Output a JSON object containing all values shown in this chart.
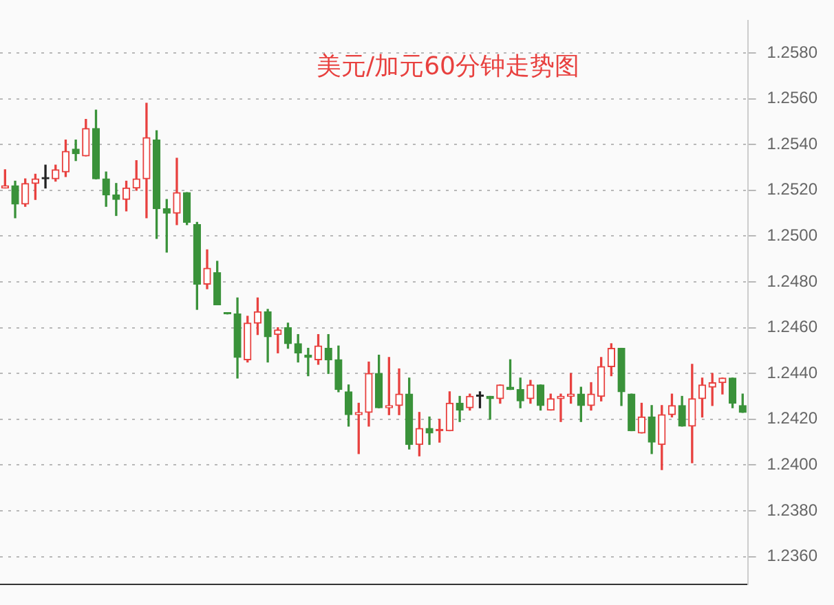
{
  "chart_data": {
    "type": "candlestick",
    "title": "美元/加元60分钟走势图",
    "categories": [
      null,
      null,
      null,
      null,
      null,
      null,
      null,
      null,
      null,
      null,
      null,
      null,
      null,
      null,
      null,
      null,
      null,
      null,
      null,
      null,
      null,
      null,
      null,
      null,
      null,
      null,
      null,
      null,
      null,
      null,
      null,
      null,
      null,
      null,
      null,
      null,
      null,
      null,
      null,
      null,
      null,
      null,
      null,
      null,
      null,
      null,
      null,
      null,
      null,
      null,
      null,
      null,
      null,
      null,
      null,
      null,
      null,
      null,
      null,
      null,
      null,
      null,
      null,
      null,
      null,
      null,
      null,
      null,
      null,
      null,
      null,
      null,
      null,
      null
    ],
    "ohlc": [
      [
        1.2521,
        1.2529,
        1.2521,
        1.2522
      ],
      [
        1.2522,
        1.2524,
        1.2508,
        1.2514
      ],
      [
        1.2514,
        1.2525,
        1.2513,
        1.2523
      ],
      [
        1.2523,
        1.2527,
        1.2516,
        1.2525
      ],
      [
        1.2525,
        1.2531,
        1.2521,
        1.2525
      ],
      [
        1.2525,
        1.2531,
        1.2524,
        1.2529
      ],
      [
        1.2528,
        1.2542,
        1.2526,
        1.2537
      ],
      [
        1.2538,
        1.2542,
        1.2533,
        1.2536
      ],
      [
        1.2535,
        1.2551,
        1.2535,
        1.2547
      ],
      [
        1.2547,
        1.2555,
        1.2525,
        1.2525
      ],
      [
        1.2525,
        1.2528,
        1.2513,
        1.2518
      ],
      [
        1.2518,
        1.2523,
        1.2509,
        1.2516
      ],
      [
        1.2516,
        1.2524,
        1.2511,
        1.2521
      ],
      [
        1.2521,
        1.2533,
        1.252,
        1.2525
      ],
      [
        1.2525,
        1.2558,
        1.2508,
        1.2543
      ],
      [
        1.2542,
        1.2546,
        1.2499,
        1.2512
      ],
      [
        1.2512,
        1.2516,
        1.2493,
        1.251
      ],
      [
        1.251,
        1.2534,
        1.2505,
        1.2519
      ],
      [
        1.2519,
        1.2519,
        1.2505,
        1.2506
      ],
      [
        1.2505,
        1.2506,
        1.2468,
        1.2479
      ],
      [
        1.2479,
        1.2494,
        1.2477,
        1.2486
      ],
      [
        1.2484,
        1.2489,
        1.247,
        1.247
      ],
      [
        1.2466,
        1.2466,
        1.2466,
        1.2466
      ],
      [
        1.2466,
        1.2473,
        1.2438,
        1.2447
      ],
      [
        1.2446,
        1.2465,
        1.2445,
        1.2462
      ],
      [
        1.2462,
        1.2473,
        1.2457,
        1.2467
      ],
      [
        1.2467,
        1.2468,
        1.2445,
        1.2456
      ],
      [
        1.2457,
        1.246,
        1.2449,
        1.2459
      ],
      [
        1.246,
        1.2462,
        1.2451,
        1.2453
      ],
      [
        1.2453,
        1.2457,
        1.2445,
        1.2449
      ],
      [
        1.2448,
        1.2451,
        1.2439,
        1.2447
      ],
      [
        1.2446,
        1.2457,
        1.2444,
        1.2452
      ],
      [
        1.2451,
        1.2457,
        1.244,
        1.2446
      ],
      [
        1.2446,
        1.2452,
        1.2432,
        1.2433
      ],
      [
        1.2432,
        1.2435,
        1.2417,
        1.2422
      ],
      [
        1.2422,
        1.2427,
        1.2405,
        1.2423
      ],
      [
        1.2423,
        1.2445,
        1.2417,
        1.244
      ],
      [
        1.244,
        1.2448,
        1.2425,
        1.2425
      ],
      [
        1.2425,
        1.2447,
        1.2422,
        1.2426
      ],
      [
        1.2426,
        1.2442,
        1.2422,
        1.2431
      ],
      [
        1.2431,
        1.2438,
        1.2407,
        1.2409
      ],
      [
        1.2409,
        1.2423,
        1.2404,
        1.2416
      ],
      [
        1.2416,
        1.2421,
        1.2409,
        1.2414
      ],
      [
        1.2415,
        1.242,
        1.241,
        1.2415
      ],
      [
        1.2415,
        1.2432,
        1.2415,
        1.2427
      ],
      [
        1.2427,
        1.243,
        1.2419,
        1.2424
      ],
      [
        1.2425,
        1.2431,
        1.2424,
        1.243
      ],
      [
        1.243,
        1.2432,
        1.2425,
        1.243
      ],
      [
        1.243,
        1.243,
        1.242,
        1.2429
      ],
      [
        1.2429,
        1.2435,
        1.2427,
        1.2435
      ],
      [
        1.2434,
        1.2446,
        1.2433,
        1.2433
      ],
      [
        1.2433,
        1.2438,
        1.2425,
        1.2428
      ],
      [
        1.2429,
        1.2437,
        1.2427,
        1.2435
      ],
      [
        1.2435,
        1.2435,
        1.2424,
        1.2426
      ],
      [
        1.2424,
        1.2431,
        1.2424,
        1.2429
      ],
      [
        1.2429,
        1.2431,
        1.2419,
        1.243
      ],
      [
        1.243,
        1.244,
        1.2427,
        1.2431
      ],
      [
        1.2431,
        1.2434,
        1.2419,
        1.2426
      ],
      [
        1.2426,
        1.2436,
        1.2424,
        1.2431
      ],
      [
        1.243,
        1.2447,
        1.2428,
        1.2443
      ],
      [
        1.2443,
        1.2453,
        1.2439,
        1.2451
      ],
      [
        1.2451,
        1.2451,
        1.2426,
        1.2432
      ],
      [
        1.2431,
        1.2431,
        1.2415,
        1.2415
      ],
      [
        1.2414,
        1.2427,
        1.2414,
        1.2421
      ],
      [
        1.2421,
        1.2426,
        1.2405,
        1.241
      ],
      [
        1.2409,
        1.2426,
        1.2398,
        1.2422
      ],
      [
        1.2422,
        1.2431,
        1.2421,
        1.2426
      ],
      [
        1.2426,
        1.243,
        1.2417,
        1.2417
      ],
      [
        1.2417,
        1.2444,
        1.2401,
        1.2429
      ],
      [
        1.2429,
        1.2438,
        1.2421,
        1.2435
      ],
      [
        1.2434,
        1.244,
        1.2426,
        1.2436
      ],
      [
        1.2436,
        1.2438,
        1.2431,
        1.2438
      ],
      [
        1.2438,
        1.2438,
        1.2425,
        1.2427
      ],
      [
        1.2426,
        1.2431,
        1.2423,
        1.2423
      ]
    ],
    "colors": [
      "#e8413f",
      "#3a923a",
      "#e8413f",
      "#e8413f",
      "#222222",
      "#e8413f",
      "#e8413f",
      "#3a923a",
      "#e8413f",
      "#3a923a",
      "#3a923a",
      "#3a923a",
      "#e8413f",
      "#e8413f",
      "#e8413f",
      "#3a923a",
      "#3a923a",
      "#e8413f",
      "#3a923a",
      "#3a923a",
      "#e8413f",
      "#3a923a",
      "#3a923a",
      "#3a923a",
      "#e8413f",
      "#e8413f",
      "#3a923a",
      "#e8413f",
      "#3a923a",
      "#3a923a",
      "#3a923a",
      "#e8413f",
      "#3a923a",
      "#3a923a",
      "#3a923a",
      "#e8413f",
      "#e8413f",
      "#3a923a",
      "#e8413f",
      "#e8413f",
      "#3a923a",
      "#e8413f",
      "#3a923a",
      "#e8413f",
      "#e8413f",
      "#3a923a",
      "#e8413f",
      "#222222",
      "#3a923a",
      "#e8413f",
      "#3a923a",
      "#3a923a",
      "#e8413f",
      "#3a923a",
      "#e8413f",
      "#e8413f",
      "#e8413f",
      "#3a923a",
      "#e8413f",
      "#e8413f",
      "#e8413f",
      "#3a923a",
      "#3a923a",
      "#e8413f",
      "#3a923a",
      "#e8413f",
      "#e8413f",
      "#3a923a",
      "#e8413f",
      "#e8413f",
      "#e8413f",
      "#e8413f",
      "#3a923a",
      "#3a923a"
    ],
    "ylim": [
      1.2348,
      1.2594
    ],
    "yticks": [
      {
        "value": 1.236,
        "label": "1.2360"
      },
      {
        "value": 1.238,
        "label": "1.2380"
      },
      {
        "value": 1.24,
        "label": "1.2400"
      },
      {
        "value": 1.242,
        "label": "1.2420"
      },
      {
        "value": 1.244,
        "label": "1.2440"
      },
      {
        "value": 1.246,
        "label": "1.2460"
      },
      {
        "value": 1.248,
        "label": "1.2480"
      },
      {
        "value": 1.25,
        "label": "1.2500"
      },
      {
        "value": 1.252,
        "label": "1.2520"
      },
      {
        "value": 1.254,
        "label": "1.2540"
      },
      {
        "value": 1.256,
        "label": "1.2560"
      },
      {
        "value": 1.258,
        "label": "1.2580"
      }
    ],
    "grid": "y",
    "tick_labels": "y",
    "legend": false
  }
}
